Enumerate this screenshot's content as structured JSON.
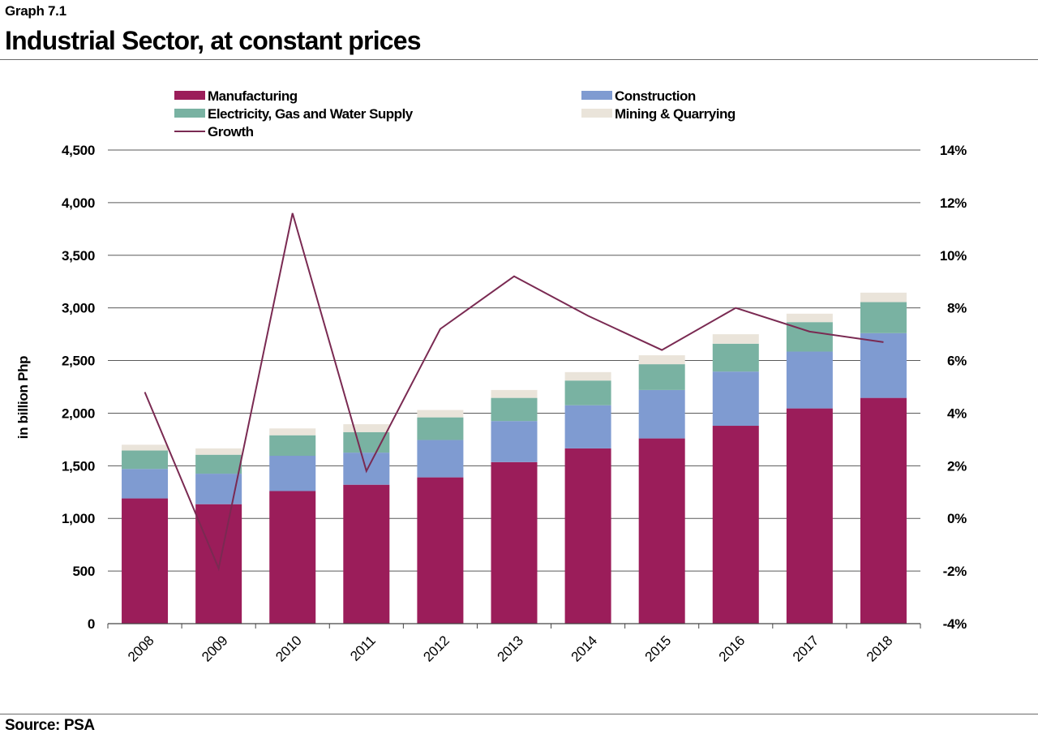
{
  "header": {
    "graph_label": "Graph 7.1",
    "title": "Industrial Sector, at constant prices"
  },
  "footer": {
    "source": "Source: PSA"
  },
  "chart_data": {
    "type": "bar",
    "stacked": true,
    "categories": [
      "2008",
      "2009",
      "2010",
      "2011",
      "2012",
      "2013",
      "2014",
      "2015",
      "2016",
      "2017",
      "2018"
    ],
    "ylabel": "in billion Php",
    "ylim": [
      0,
      4500
    ],
    "yticks": [
      "0",
      "500",
      "1,000",
      "1,500",
      "2,000",
      "2,500",
      "3,000",
      "3,500",
      "4,000",
      "4,500"
    ],
    "y2lim": [
      -4,
      14
    ],
    "y2ticks": [
      "-4%",
      "-2%",
      "0%",
      "2%",
      "4%",
      "6%",
      "8%",
      "10%",
      "12%",
      "14%"
    ],
    "grid": "horizontal",
    "legend_position": "top",
    "series": [
      {
        "name": "Manufacturing",
        "color": "#9B1D5A",
        "values": [
          1190,
          1135,
          1260,
          1320,
          1390,
          1535,
          1665,
          1760,
          1880,
          2045,
          2145
        ]
      },
      {
        "name": "Construction",
        "color": "#7F9BD1",
        "values": [
          280,
          290,
          335,
          305,
          355,
          390,
          410,
          460,
          515,
          540,
          615
        ]
      },
      {
        "name": "Electricity, Gas and Water Supply",
        "color": "#79B2A2",
        "values": [
          175,
          180,
          195,
          195,
          215,
          220,
          235,
          245,
          265,
          280,
          295
        ]
      },
      {
        "name": "Mining & Quarrying",
        "color": "#EAE4DA",
        "values": [
          55,
          60,
          65,
          75,
          70,
          75,
          80,
          85,
          90,
          80,
          90
        ]
      }
    ],
    "line_series": {
      "name": "Growth",
      "color": "#7A2A52",
      "axis": "right",
      "values": [
        4.8,
        -1.9,
        11.6,
        1.8,
        7.2,
        9.2,
        7.7,
        6.4,
        8.0,
        7.1,
        6.7
      ]
    }
  }
}
